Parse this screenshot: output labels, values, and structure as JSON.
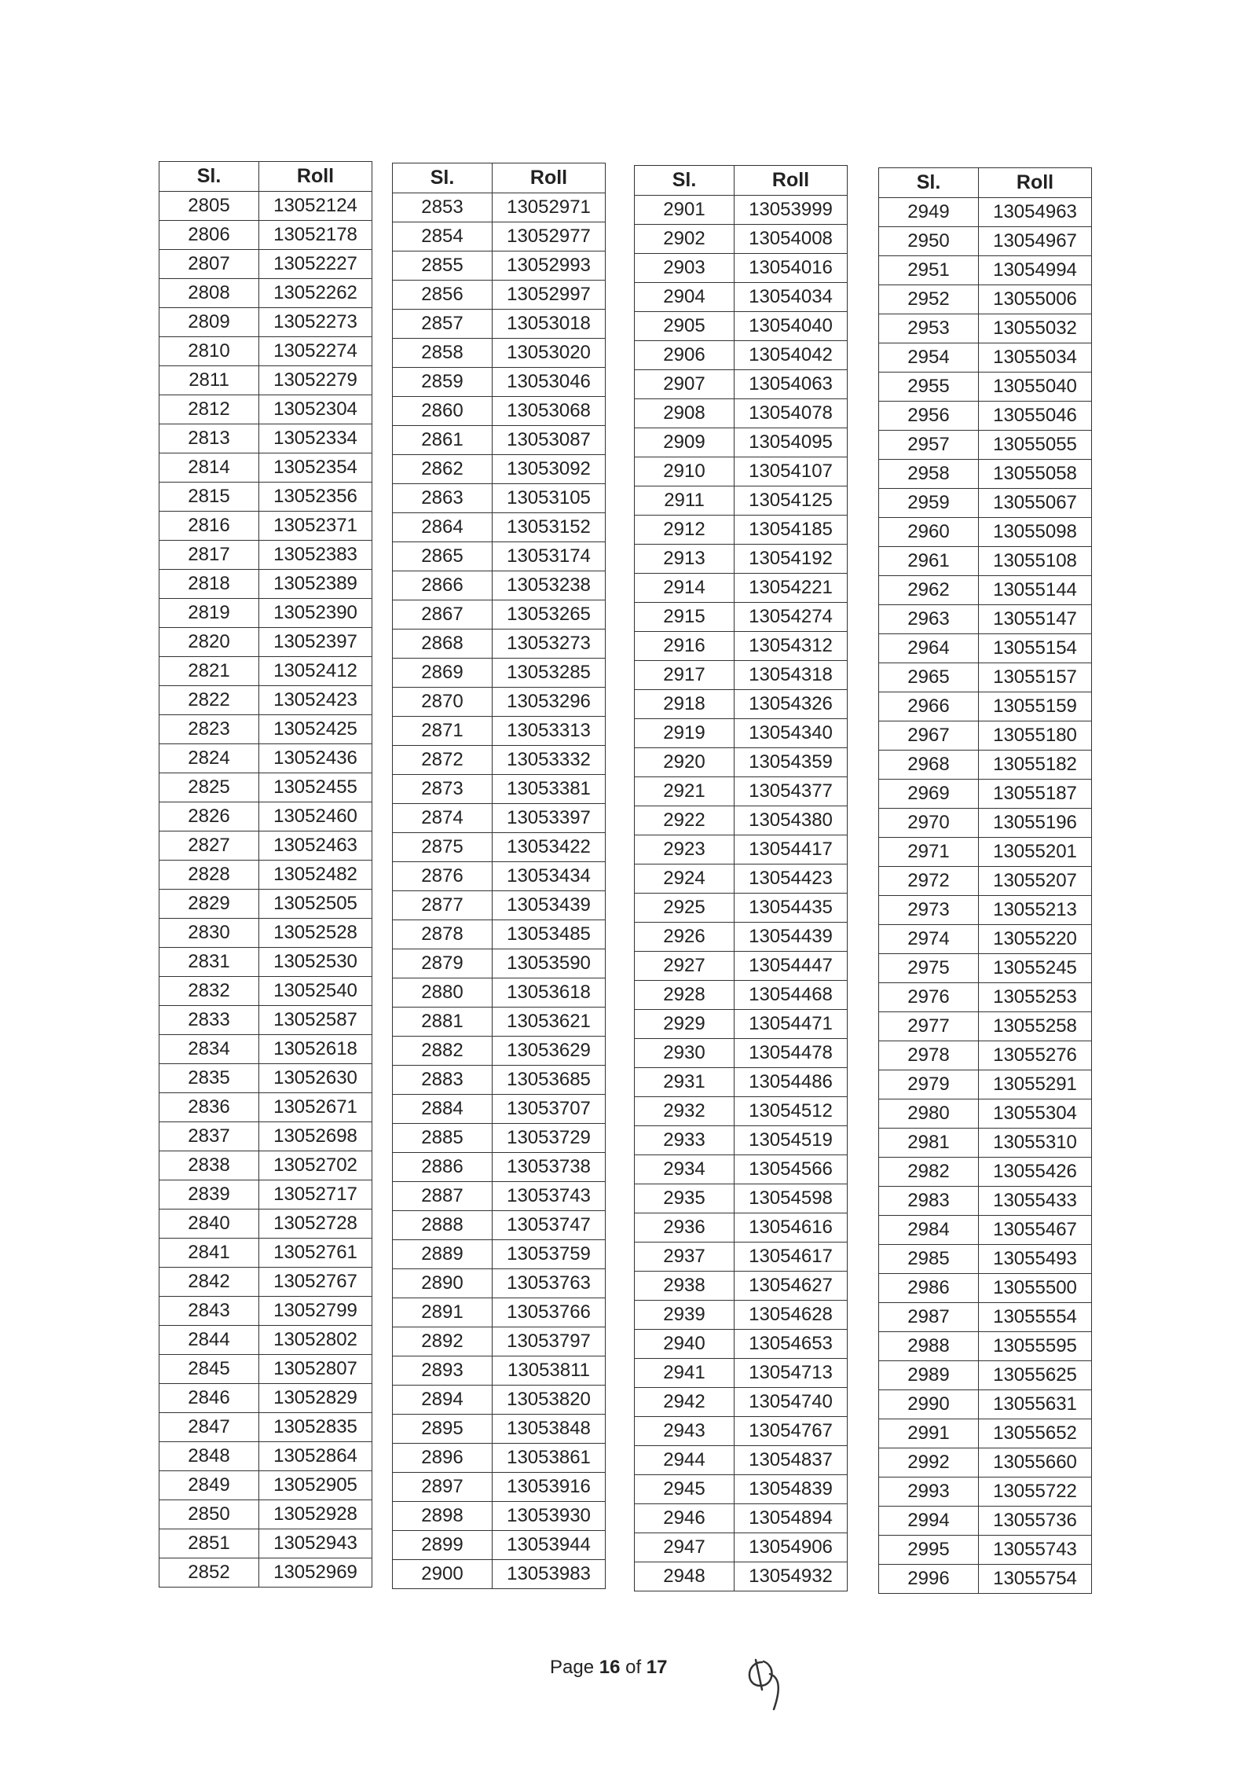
{
  "document": {
    "headers": {
      "sl": "Sl.",
      "roll": "Roll"
    },
    "tables": [
      {
        "rows": [
          [
            "2805",
            "13052124"
          ],
          [
            "2806",
            "13052178"
          ],
          [
            "2807",
            "13052227"
          ],
          [
            "2808",
            "13052262"
          ],
          [
            "2809",
            "13052273"
          ],
          [
            "2810",
            "13052274"
          ],
          [
            "2811",
            "13052279"
          ],
          [
            "2812",
            "13052304"
          ],
          [
            "2813",
            "13052334"
          ],
          [
            "2814",
            "13052354"
          ],
          [
            "2815",
            "13052356"
          ],
          [
            "2816",
            "13052371"
          ],
          [
            "2817",
            "13052383"
          ],
          [
            "2818",
            "13052389"
          ],
          [
            "2819",
            "13052390"
          ],
          [
            "2820",
            "13052397"
          ],
          [
            "2821",
            "13052412"
          ],
          [
            "2822",
            "13052423"
          ],
          [
            "2823",
            "13052425"
          ],
          [
            "2824",
            "13052436"
          ],
          [
            "2825",
            "13052455"
          ],
          [
            "2826",
            "13052460"
          ],
          [
            "2827",
            "13052463"
          ],
          [
            "2828",
            "13052482"
          ],
          [
            "2829",
            "13052505"
          ],
          [
            "2830",
            "13052528"
          ],
          [
            "2831",
            "13052530"
          ],
          [
            "2832",
            "13052540"
          ],
          [
            "2833",
            "13052587"
          ],
          [
            "2834",
            "13052618"
          ],
          [
            "2835",
            "13052630"
          ],
          [
            "2836",
            "13052671"
          ],
          [
            "2837",
            "13052698"
          ],
          [
            "2838",
            "13052702"
          ],
          [
            "2839",
            "13052717"
          ],
          [
            "2840",
            "13052728"
          ],
          [
            "2841",
            "13052761"
          ],
          [
            "2842",
            "13052767"
          ],
          [
            "2843",
            "13052799"
          ],
          [
            "2844",
            "13052802"
          ],
          [
            "2845",
            "13052807"
          ],
          [
            "2846",
            "13052829"
          ],
          [
            "2847",
            "13052835"
          ],
          [
            "2848",
            "13052864"
          ],
          [
            "2849",
            "13052905"
          ],
          [
            "2850",
            "13052928"
          ],
          [
            "2851",
            "13052943"
          ],
          [
            "2852",
            "13052969"
          ]
        ]
      },
      {
        "rows": [
          [
            "2853",
            "13052971"
          ],
          [
            "2854",
            "13052977"
          ],
          [
            "2855",
            "13052993"
          ],
          [
            "2856",
            "13052997"
          ],
          [
            "2857",
            "13053018"
          ],
          [
            "2858",
            "13053020"
          ],
          [
            "2859",
            "13053046"
          ],
          [
            "2860",
            "13053068"
          ],
          [
            "2861",
            "13053087"
          ],
          [
            "2862",
            "13053092"
          ],
          [
            "2863",
            "13053105"
          ],
          [
            "2864",
            "13053152"
          ],
          [
            "2865",
            "13053174"
          ],
          [
            "2866",
            "13053238"
          ],
          [
            "2867",
            "13053265"
          ],
          [
            "2868",
            "13053273"
          ],
          [
            "2869",
            "13053285"
          ],
          [
            "2870",
            "13053296"
          ],
          [
            "2871",
            "13053313"
          ],
          [
            "2872",
            "13053332"
          ],
          [
            "2873",
            "13053381"
          ],
          [
            "2874",
            "13053397"
          ],
          [
            "2875",
            "13053422"
          ],
          [
            "2876",
            "13053434"
          ],
          [
            "2877",
            "13053439"
          ],
          [
            "2878",
            "13053485"
          ],
          [
            "2879",
            "13053590"
          ],
          [
            "2880",
            "13053618"
          ],
          [
            "2881",
            "13053621"
          ],
          [
            "2882",
            "13053629"
          ],
          [
            "2883",
            "13053685"
          ],
          [
            "2884",
            "13053707"
          ],
          [
            "2885",
            "13053729"
          ],
          [
            "2886",
            "13053738"
          ],
          [
            "2887",
            "13053743"
          ],
          [
            "2888",
            "13053747"
          ],
          [
            "2889",
            "13053759"
          ],
          [
            "2890",
            "13053763"
          ],
          [
            "2891",
            "13053766"
          ],
          [
            "2892",
            "13053797"
          ],
          [
            "2893",
            "13053811"
          ],
          [
            "2894",
            "13053820"
          ],
          [
            "2895",
            "13053848"
          ],
          [
            "2896",
            "13053861"
          ],
          [
            "2897",
            "13053916"
          ],
          [
            "2898",
            "13053930"
          ],
          [
            "2899",
            "13053944"
          ],
          [
            "2900",
            "13053983"
          ]
        ]
      },
      {
        "rows": [
          [
            "2901",
            "13053999"
          ],
          [
            "2902",
            "13054008"
          ],
          [
            "2903",
            "13054016"
          ],
          [
            "2904",
            "13054034"
          ],
          [
            "2905",
            "13054040"
          ],
          [
            "2906",
            "13054042"
          ],
          [
            "2907",
            "13054063"
          ],
          [
            "2908",
            "13054078"
          ],
          [
            "2909",
            "13054095"
          ],
          [
            "2910",
            "13054107"
          ],
          [
            "2911",
            "13054125"
          ],
          [
            "2912",
            "13054185"
          ],
          [
            "2913",
            "13054192"
          ],
          [
            "2914",
            "13054221"
          ],
          [
            "2915",
            "13054274"
          ],
          [
            "2916",
            "13054312"
          ],
          [
            "2917",
            "13054318"
          ],
          [
            "2918",
            "13054326"
          ],
          [
            "2919",
            "13054340"
          ],
          [
            "2920",
            "13054359"
          ],
          [
            "2921",
            "13054377"
          ],
          [
            "2922",
            "13054380"
          ],
          [
            "2923",
            "13054417"
          ],
          [
            "2924",
            "13054423"
          ],
          [
            "2925",
            "13054435"
          ],
          [
            "2926",
            "13054439"
          ],
          [
            "2927",
            "13054447"
          ],
          [
            "2928",
            "13054468"
          ],
          [
            "2929",
            "13054471"
          ],
          [
            "2930",
            "13054478"
          ],
          [
            "2931",
            "13054486"
          ],
          [
            "2932",
            "13054512"
          ],
          [
            "2933",
            "13054519"
          ],
          [
            "2934",
            "13054566"
          ],
          [
            "2935",
            "13054598"
          ],
          [
            "2936",
            "13054616"
          ],
          [
            "2937",
            "13054617"
          ],
          [
            "2938",
            "13054627"
          ],
          [
            "2939",
            "13054628"
          ],
          [
            "2940",
            "13054653"
          ],
          [
            "2941",
            "13054713"
          ],
          [
            "2942",
            "13054740"
          ],
          [
            "2943",
            "13054767"
          ],
          [
            "2944",
            "13054837"
          ],
          [
            "2945",
            "13054839"
          ],
          [
            "2946",
            "13054894"
          ],
          [
            "2947",
            "13054906"
          ],
          [
            "2948",
            "13054932"
          ]
        ]
      },
      {
        "rows": [
          [
            "2949",
            "13054963"
          ],
          [
            "2950",
            "13054967"
          ],
          [
            "2951",
            "13054994"
          ],
          [
            "2952",
            "13055006"
          ],
          [
            "2953",
            "13055032"
          ],
          [
            "2954",
            "13055034"
          ],
          [
            "2955",
            "13055040"
          ],
          [
            "2956",
            "13055046"
          ],
          [
            "2957",
            "13055055"
          ],
          [
            "2958",
            "13055058"
          ],
          [
            "2959",
            "13055067"
          ],
          [
            "2960",
            "13055098"
          ],
          [
            "2961",
            "13055108"
          ],
          [
            "2962",
            "13055144"
          ],
          [
            "2963",
            "13055147"
          ],
          [
            "2964",
            "13055154"
          ],
          [
            "2965",
            "13055157"
          ],
          [
            "2966",
            "13055159"
          ],
          [
            "2967",
            "13055180"
          ],
          [
            "2968",
            "13055182"
          ],
          [
            "2969",
            "13055187"
          ],
          [
            "2970",
            "13055196"
          ],
          [
            "2971",
            "13055201"
          ],
          [
            "2972",
            "13055207"
          ],
          [
            "2973",
            "13055213"
          ],
          [
            "2974",
            "13055220"
          ],
          [
            "2975",
            "13055245"
          ],
          [
            "2976",
            "13055253"
          ],
          [
            "2977",
            "13055258"
          ],
          [
            "2978",
            "13055276"
          ],
          [
            "2979",
            "13055291"
          ],
          [
            "2980",
            "13055304"
          ],
          [
            "2981",
            "13055310"
          ],
          [
            "2982",
            "13055426"
          ],
          [
            "2983",
            "13055433"
          ],
          [
            "2984",
            "13055467"
          ],
          [
            "2985",
            "13055493"
          ],
          [
            "2986",
            "13055500"
          ],
          [
            "2987",
            "13055554"
          ],
          [
            "2988",
            "13055595"
          ],
          [
            "2989",
            "13055625"
          ],
          [
            "2990",
            "13055631"
          ],
          [
            "2991",
            "13055652"
          ],
          [
            "2992",
            "13055660"
          ],
          [
            "2993",
            "13055722"
          ],
          [
            "2994",
            "13055736"
          ],
          [
            "2995",
            "13055743"
          ],
          [
            "2996",
            "13055754"
          ]
        ]
      }
    ],
    "footer": {
      "page_label": "Page",
      "page_current": "16",
      "of_label": "of",
      "page_total": "17"
    }
  }
}
